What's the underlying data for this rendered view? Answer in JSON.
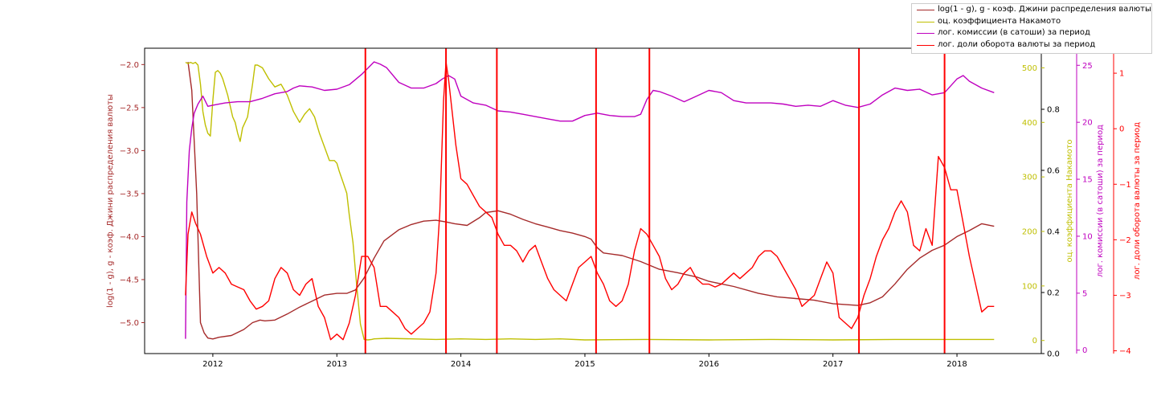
{
  "chart_data": {
    "type": "line",
    "x_ticks": [
      "2012",
      "2013",
      "2014",
      "2015",
      "2016",
      "2017",
      "2018"
    ],
    "xlim": [
      2011.45,
      2018.68
    ],
    "vlines_x": [
      2013.23,
      2013.88,
      2014.29,
      2015.09,
      2015.52,
      2017.21,
      2017.9
    ],
    "vline_color": "#ff0000",
    "axes": {
      "left": {
        "label": "log(1 - g), g - коэф. Джини распределения валюты",
        "color": "#a52a2a",
        "ylim": [
          -5.36,
          -1.81
        ],
        "ticks": [
          -2.0,
          -2.5,
          -3.0,
          -3.5,
          -4.0,
          -4.5,
          -5.0
        ],
        "tick_labels": [
          "−2.0",
          "−2.5",
          "−3.0",
          "−3.5",
          "−4.0",
          "−4.5",
          "−5.0"
        ]
      },
      "aux": {
        "label": "",
        "color": "#000000",
        "ylim": [
          0.0,
          1.0
        ],
        "ticks": [
          0.0,
          0.2,
          0.4,
          0.6,
          0.8
        ],
        "tick_labels": [
          "0.0",
          "0.2",
          "0.4",
          "0.6",
          "0.8"
        ]
      },
      "right1": {
        "label": "оц. коэффициента Накамото",
        "color": "#bfbf00",
        "ylim": [
          -24,
          536
        ],
        "ticks": [
          0,
          100,
          200,
          300,
          400,
          500
        ],
        "tick_labels": [
          "0",
          "100",
          "200",
          "300",
          "400",
          "500"
        ]
      },
      "right2": {
        "label": "лог. комиссии (в сатоши) за период",
        "color": "#bf00bf",
        "ylim": [
          -0.3,
          26.5
        ],
        "ticks": [
          0,
          5,
          10,
          15,
          20,
          25
        ],
        "tick_labels": [
          "0",
          "5",
          "10",
          "15",
          "20",
          "25"
        ]
      },
      "right3": {
        "label": "лог. доли оборота валюты за период",
        "color": "#ff0000",
        "ylim": [
          -4.05,
          1.45
        ],
        "ticks": [
          1,
          0,
          -1,
          -2,
          -3,
          -4
        ],
        "tick_labels": [
          "1",
          "0",
          "−1",
          "−2",
          "−3",
          "−4"
        ]
      }
    },
    "series": [
      {
        "name": "log(1 - g), g - коэф. Джини распределения валюты",
        "color": "#a52a2a",
        "axis": "left",
        "x": [
          2011.8,
          2011.83,
          2011.87,
          2011.9,
          2011.93,
          2011.96,
          2012.0,
          2012.05,
          2012.15,
          2012.25,
          2012.32,
          2012.38,
          2012.42,
          2012.5,
          2012.6,
          2012.7,
          2012.8,
          2012.9,
          2013.0,
          2013.08,
          2013.15,
          2013.22,
          2013.3,
          2013.38,
          2013.5,
          2013.6,
          2013.7,
          2013.8,
          2013.88,
          2013.95,
          2014.05,
          2014.15,
          2014.2,
          2014.3,
          2014.4,
          2014.5,
          2014.6,
          2014.7,
          2014.8,
          2014.9,
          2015.0,
          2015.05,
          2015.1,
          2015.15,
          2015.3,
          2015.45,
          2015.6,
          2015.75,
          2015.9,
          2016.0,
          2016.2,
          2016.4,
          2016.55,
          2016.7,
          2016.85,
          2017.0,
          2017.2,
          2017.3,
          2017.4,
          2017.5,
          2017.6,
          2017.7,
          2017.8,
          2017.9,
          2018.0,
          2018.1,
          2018.2,
          2018.3
        ],
        "y": [
          -1.97,
          -2.3,
          -3.5,
          -5.0,
          -5.12,
          -5.18,
          -5.19,
          -5.17,
          -5.15,
          -5.08,
          -5.0,
          -4.97,
          -4.98,
          -4.97,
          -4.9,
          -4.82,
          -4.75,
          -4.68,
          -4.66,
          -4.66,
          -4.62,
          -4.48,
          -4.25,
          -4.05,
          -3.92,
          -3.86,
          -3.82,
          -3.81,
          -3.83,
          -3.85,
          -3.87,
          -3.78,
          -3.72,
          -3.7,
          -3.74,
          -3.8,
          -3.85,
          -3.89,
          -3.93,
          -3.96,
          -4.0,
          -4.03,
          -4.13,
          -4.19,
          -4.22,
          -4.29,
          -4.38,
          -4.42,
          -4.47,
          -4.52,
          -4.58,
          -4.66,
          -4.7,
          -4.72,
          -4.74,
          -4.78,
          -4.8,
          -4.77,
          -4.7,
          -4.55,
          -4.38,
          -4.25,
          -4.16,
          -4.1,
          -4.0,
          -3.93,
          -3.85,
          -3.88
        ]
      },
      {
        "name": "оц. коэффициента Накамото",
        "color": "#bfbf00",
        "axis": "right1",
        "x": [
          2011.78,
          2011.8,
          2011.82,
          2011.84,
          2011.86,
          2011.88,
          2011.9,
          2011.92,
          2011.94,
          2011.96,
          2011.98,
          2012.0,
          2012.02,
          2012.04,
          2012.06,
          2012.08,
          2012.1,
          2012.12,
          2012.14,
          2012.16,
          2012.18,
          2012.2,
          2012.22,
          2012.24,
          2012.26,
          2012.28,
          2012.3,
          2012.32,
          2012.34,
          2012.36,
          2012.4,
          2012.45,
          2012.5,
          2012.55,
          2012.6,
          2012.65,
          2012.7,
          2012.74,
          2012.78,
          2012.82,
          2012.86,
          2012.9,
          2012.94,
          2012.98,
          2013.0,
          2013.02,
          2013.05,
          2013.08,
          2013.1,
          2013.13,
          2013.16,
          2013.19,
          2013.22,
          2013.25,
          2013.28,
          2013.3,
          2013.4,
          2013.6,
          2013.8,
          2014.0,
          2014.2,
          2014.4,
          2014.6,
          2014.8,
          2015.0,
          2015.5,
          2016.0,
          2016.5,
          2017.0,
          2017.5,
          2018.0,
          2018.3
        ],
        "y": [
          510,
          508,
          510,
          508,
          510,
          505,
          470,
          420,
          395,
          380,
          375,
          440,
          492,
          495,
          490,
          480,
          465,
          450,
          430,
          410,
          400,
          380,
          365,
          390,
          400,
          410,
          440,
          470,
          505,
          505,
          500,
          480,
          465,
          470,
          450,
          420,
          400,
          415,
          425,
          410,
          380,
          355,
          330,
          330,
          325,
          310,
          290,
          270,
          230,
          180,
          100,
          30,
          2,
          1,
          2,
          3,
          4,
          3,
          2,
          3,
          2,
          3,
          2,
          3,
          1,
          2,
          1,
          2,
          1,
          2,
          2,
          2
        ]
      },
      {
        "name": "лог. комиссии (в сатоши) за период",
        "color": "#bf00bf",
        "axis": "right2",
        "x": [
          2011.78,
          2011.79,
          2011.81,
          2011.83,
          2011.85,
          2011.88,
          2011.92,
          2011.96,
          2012.0,
          2012.1,
          2012.2,
          2012.3,
          2012.4,
          2012.5,
          2012.6,
          2012.65,
          2012.7,
          2012.8,
          2012.9,
          2013.0,
          2013.1,
          2013.2,
          2013.3,
          2013.35,
          2013.4,
          2013.5,
          2013.6,
          2013.7,
          2013.8,
          2013.85,
          2013.9,
          2013.95,
          2014.0,
          2014.1,
          2014.2,
          2014.3,
          2014.4,
          2014.5,
          2014.6,
          2014.7,
          2014.8,
          2014.9,
          2015.0,
          2015.1,
          2015.2,
          2015.3,
          2015.4,
          2015.45,
          2015.5,
          2015.55,
          2015.6,
          2015.7,
          2015.8,
          2015.9,
          2016.0,
          2016.1,
          2016.2,
          2016.3,
          2016.4,
          2016.5,
          2016.6,
          2016.7,
          2016.8,
          2016.9,
          2017.0,
          2017.1,
          2017.2,
          2017.3,
          2017.4,
          2017.5,
          2017.6,
          2017.7,
          2017.8,
          2017.9,
          2018.0,
          2018.05,
          2018.1,
          2018.2,
          2018.3
        ],
        "y": [
          1.0,
          13.0,
          17.5,
          19.5,
          20.8,
          21.6,
          22.3,
          21.4,
          21.5,
          21.7,
          21.8,
          21.8,
          22.1,
          22.5,
          22.7,
          23.0,
          23.2,
          23.1,
          22.8,
          22.9,
          23.3,
          24.2,
          25.3,
          25.1,
          24.8,
          23.5,
          23.0,
          23.0,
          23.4,
          23.8,
          24.1,
          23.8,
          22.3,
          21.7,
          21.5,
          21.0,
          20.9,
          20.7,
          20.5,
          20.3,
          20.1,
          20.1,
          20.6,
          20.8,
          20.6,
          20.5,
          20.5,
          20.7,
          22.0,
          22.8,
          22.7,
          22.3,
          21.8,
          22.3,
          22.8,
          22.6,
          21.9,
          21.7,
          21.7,
          21.7,
          21.6,
          21.4,
          21.5,
          21.4,
          21.9,
          21.5,
          21.3,
          21.6,
          22.4,
          23.0,
          22.8,
          22.9,
          22.4,
          22.6,
          23.8,
          24.1,
          23.6,
          23.0,
          22.6
        ]
      },
      {
        "name": "лог. доли оборота валюты за период",
        "color": "#ff0000",
        "axis": "right3",
        "x": [
          2011.78,
          2011.8,
          2011.83,
          2011.86,
          2011.9,
          2011.95,
          2012.0,
          2012.05,
          2012.1,
          2012.15,
          2012.2,
          2012.25,
          2012.3,
          2012.35,
          2012.4,
          2012.45,
          2012.5,
          2012.55,
          2012.6,
          2012.65,
          2012.7,
          2012.75,
          2012.8,
          2012.85,
          2012.9,
          2012.95,
          2013.0,
          2013.05,
          2013.1,
          2013.15,
          2013.2,
          2013.25,
          2013.3,
          2013.35,
          2013.4,
          2013.45,
          2013.5,
          2013.55,
          2013.6,
          2013.65,
          2013.7,
          2013.75,
          2013.8,
          2013.83,
          2013.86,
          2013.88,
          2013.9,
          2013.93,
          2013.96,
          2014.0,
          2014.05,
          2014.1,
          2014.15,
          2014.2,
          2014.25,
          2014.3,
          2014.35,
          2014.4,
          2014.45,
          2014.5,
          2014.55,
          2014.6,
          2014.65,
          2014.7,
          2014.75,
          2014.8,
          2014.85,
          2014.9,
          2014.95,
          2015.0,
          2015.05,
          2015.1,
          2015.15,
          2015.2,
          2015.25,
          2015.3,
          2015.35,
          2015.4,
          2015.45,
          2015.5,
          2015.55,
          2015.6,
          2015.65,
          2015.7,
          2015.75,
          2015.8,
          2015.85,
          2015.9,
          2015.95,
          2016.0,
          2016.05,
          2016.1,
          2016.15,
          2016.2,
          2016.25,
          2016.3,
          2016.35,
          2016.4,
          2016.45,
          2016.5,
          2016.55,
          2016.6,
          2016.65,
          2016.7,
          2016.75,
          2016.8,
          2016.85,
          2016.9,
          2016.95,
          2017.0,
          2017.05,
          2017.1,
          2017.15,
          2017.2,
          2017.25,
          2017.3,
          2017.35,
          2017.4,
          2017.45,
          2017.5,
          2017.55,
          2017.6,
          2017.65,
          2017.7,
          2017.75,
          2017.8,
          2017.85,
          2017.9,
          2017.95,
          2018.0,
          2018.05,
          2018.1,
          2018.15,
          2018.2,
          2018.25,
          2018.3
        ],
        "y": [
          -3.0,
          -1.9,
          -1.5,
          -1.7,
          -1.9,
          -2.3,
          -2.6,
          -2.5,
          -2.6,
          -2.8,
          -2.85,
          -2.9,
          -3.1,
          -3.25,
          -3.2,
          -3.1,
          -2.7,
          -2.5,
          -2.6,
          -2.9,
          -3.0,
          -2.8,
          -2.7,
          -3.2,
          -3.4,
          -3.8,
          -3.7,
          -3.8,
          -3.5,
          -3.0,
          -2.3,
          -2.3,
          -2.5,
          -3.2,
          -3.2,
          -3.3,
          -3.4,
          -3.6,
          -3.7,
          -3.6,
          -3.5,
          -3.3,
          -2.6,
          -1.5,
          0.5,
          1.2,
          0.9,
          0.3,
          -0.3,
          -0.9,
          -1.0,
          -1.2,
          -1.4,
          -1.5,
          -1.6,
          -1.9,
          -2.1,
          -2.1,
          -2.2,
          -2.4,
          -2.2,
          -2.1,
          -2.4,
          -2.7,
          -2.9,
          -3.0,
          -3.1,
          -2.8,
          -2.5,
          -2.4,
          -2.3,
          -2.6,
          -2.8,
          -3.1,
          -3.2,
          -3.1,
          -2.8,
          -2.2,
          -1.8,
          -1.9,
          -2.1,
          -2.3,
          -2.7,
          -2.9,
          -2.8,
          -2.6,
          -2.5,
          -2.7,
          -2.8,
          -2.8,
          -2.85,
          -2.8,
          -2.7,
          -2.6,
          -2.7,
          -2.6,
          -2.5,
          -2.3,
          -2.2,
          -2.2,
          -2.3,
          -2.5,
          -2.7,
          -2.9,
          -3.2,
          -3.1,
          -3.0,
          -2.7,
          -2.4,
          -2.6,
          -3.4,
          -3.5,
          -3.6,
          -3.4,
          -3.0,
          -2.7,
          -2.3,
          -2.0,
          -1.8,
          -1.5,
          -1.3,
          -1.5,
          -2.1,
          -2.2,
          -1.8,
          -2.1,
          -0.5,
          -0.7,
          -1.1,
          -1.1,
          -1.7,
          -2.3,
          -2.8,
          -3.3,
          -3.2,
          -3.2
        ]
      }
    ]
  }
}
